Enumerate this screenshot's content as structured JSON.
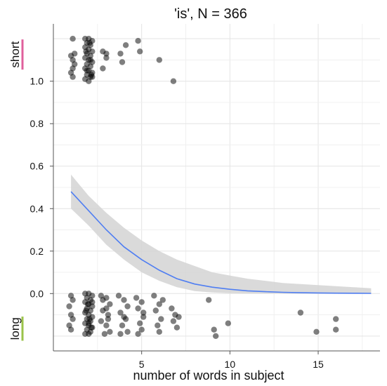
{
  "chart_data": {
    "type": "scatter",
    "title": "'is', N = 366",
    "xlabel": "number of words in subject",
    "ylabel": "",
    "xlim": [
      0,
      18.5
    ],
    "ylim": [
      -0.27,
      1.27
    ],
    "x_ticks": [
      5,
      10,
      15
    ],
    "y_ticks": [
      0.0,
      0.2,
      0.4,
      0.6,
      0.8,
      1.0
    ],
    "y_tick_labels": [
      "0.0",
      "0.2",
      "0.4",
      "0.6",
      "0.8",
      "1.0"
    ],
    "grid": true,
    "category_labels": [
      {
        "text": "short",
        "y": 1.0,
        "color": "#e0609c"
      },
      {
        "text": "long",
        "y": 0.0,
        "color": "#9bc34a"
      }
    ],
    "fit": {
      "x": [
        1,
        2,
        3,
        4,
        5,
        6,
        7,
        8,
        9,
        10,
        11,
        12,
        13,
        14,
        15,
        16,
        17,
        18
      ],
      "y": [
        0.48,
        0.39,
        0.3,
        0.22,
        0.16,
        0.11,
        0.07,
        0.045,
        0.03,
        0.02,
        0.013,
        0.009,
        0.006,
        0.004,
        0.003,
        0.002,
        0.0015,
        0.001
      ],
      "lower": [
        0.4,
        0.32,
        0.23,
        0.16,
        0.1,
        0.06,
        0.03,
        0.012,
        0.005,
        0.002,
        0.001,
        0.0005,
        0.0003,
        0.0002,
        0.0001,
        0.0001,
        0.0,
        0.0
      ],
      "upper": [
        0.56,
        0.46,
        0.38,
        0.31,
        0.25,
        0.2,
        0.16,
        0.13,
        0.1,
        0.085,
        0.07,
        0.06,
        0.05,
        0.045,
        0.04,
        0.035,
        0.03,
        0.025
      ],
      "line_color": "#4f7ef2",
      "band_color": "#d3d3d3"
    },
    "points": [
      {
        "x": 1.1,
        "y": 1.2
      },
      {
        "x": 1.2,
        "y": 1.13
      },
      {
        "x": 1.0,
        "y": 1.12
      },
      {
        "x": 1.1,
        "y": 1.1
      },
      {
        "x": 1.2,
        "y": 1.08
      },
      {
        "x": 1.1,
        "y": 1.06
      },
      {
        "x": 1.0,
        "y": 1.04
      },
      {
        "x": 1.1,
        "y": 1.02
      },
      {
        "x": 1.8,
        "y": 1.2
      },
      {
        "x": 2.0,
        "y": 1.2
      },
      {
        "x": 2.2,
        "y": 1.19
      },
      {
        "x": 1.9,
        "y": 1.18
      },
      {
        "x": 2.1,
        "y": 1.17
      },
      {
        "x": 1.8,
        "y": 1.16
      },
      {
        "x": 2.0,
        "y": 1.15
      },
      {
        "x": 2.2,
        "y": 1.14
      },
      {
        "x": 1.9,
        "y": 1.13
      },
      {
        "x": 2.1,
        "y": 1.12
      },
      {
        "x": 1.8,
        "y": 1.11
      },
      {
        "x": 2.0,
        "y": 1.1
      },
      {
        "x": 2.2,
        "y": 1.09
      },
      {
        "x": 1.9,
        "y": 1.08
      },
      {
        "x": 2.1,
        "y": 1.07
      },
      {
        "x": 1.8,
        "y": 1.06
      },
      {
        "x": 2.0,
        "y": 1.05
      },
      {
        "x": 2.2,
        "y": 1.04
      },
      {
        "x": 1.9,
        "y": 1.03
      },
      {
        "x": 2.1,
        "y": 1.02
      },
      {
        "x": 1.8,
        "y": 1.01
      },
      {
        "x": 2.0,
        "y": 1.0
      },
      {
        "x": 2.2,
        "y": 1.02
      },
      {
        "x": 1.9,
        "y": 1.05
      },
      {
        "x": 2.1,
        "y": 1.1
      },
      {
        "x": 1.85,
        "y": 1.14
      },
      {
        "x": 2.05,
        "y": 1.18
      },
      {
        "x": 2.15,
        "y": 1.03
      },
      {
        "x": 2.8,
        "y": 1.14
      },
      {
        "x": 3.0,
        "y": 1.13
      },
      {
        "x": 3.0,
        "y": 1.11
      },
      {
        "x": 2.8,
        "y": 1.06
      },
      {
        "x": 3.8,
        "y": 1.13
      },
      {
        "x": 4.1,
        "y": 1.17
      },
      {
        "x": 3.9,
        "y": 1.09
      },
      {
        "x": 4.8,
        "y": 1.19
      },
      {
        "x": 4.9,
        "y": 1.14
      },
      {
        "x": 6.0,
        "y": 1.1
      },
      {
        "x": 6.8,
        "y": 1.0
      },
      {
        "x": 1.0,
        "y": -0.01
      },
      {
        "x": 1.1,
        "y": -0.03
      },
      {
        "x": 0.9,
        "y": -0.06
      },
      {
        "x": 1.0,
        "y": -0.1
      },
      {
        "x": 1.1,
        "y": -0.12
      },
      {
        "x": 0.9,
        "y": -0.15
      },
      {
        "x": 1.0,
        "y": -0.17
      },
      {
        "x": 1.8,
        "y": -0.0
      },
      {
        "x": 2.0,
        "y": -0.0
      },
      {
        "x": 2.2,
        "y": -0.01
      },
      {
        "x": 1.9,
        "y": -0.02
      },
      {
        "x": 2.1,
        "y": -0.03
      },
      {
        "x": 1.8,
        "y": -0.04
      },
      {
        "x": 2.0,
        "y": -0.05
      },
      {
        "x": 2.2,
        "y": -0.06
      },
      {
        "x": 1.9,
        "y": -0.07
      },
      {
        "x": 2.1,
        "y": -0.08
      },
      {
        "x": 1.8,
        "y": -0.09
      },
      {
        "x": 2.0,
        "y": -0.1
      },
      {
        "x": 2.2,
        "y": -0.11
      },
      {
        "x": 1.9,
        "y": -0.12
      },
      {
        "x": 2.1,
        "y": -0.13
      },
      {
        "x": 1.8,
        "y": -0.14
      },
      {
        "x": 2.0,
        "y": -0.15
      },
      {
        "x": 2.2,
        "y": -0.16
      },
      {
        "x": 1.9,
        "y": -0.17
      },
      {
        "x": 2.1,
        "y": -0.18
      },
      {
        "x": 1.8,
        "y": -0.19
      },
      {
        "x": 2.0,
        "y": -0.19
      },
      {
        "x": 2.2,
        "y": -0.04
      },
      {
        "x": 1.85,
        "y": -0.08
      },
      {
        "x": 2.05,
        "y": -0.12
      },
      {
        "x": 2.15,
        "y": -0.16
      },
      {
        "x": 1.95,
        "y": -0.05
      },
      {
        "x": 2.0,
        "y": -0.14
      },
      {
        "x": 2.7,
        "y": -0.01
      },
      {
        "x": 3.0,
        "y": -0.02
      },
      {
        "x": 3.2,
        "y": -0.05
      },
      {
        "x": 2.8,
        "y": -0.08
      },
      {
        "x": 3.1,
        "y": -0.1
      },
      {
        "x": 2.7,
        "y": -0.13
      },
      {
        "x": 3.0,
        "y": -0.15
      },
      {
        "x": 3.2,
        "y": -0.18
      },
      {
        "x": 2.9,
        "y": -0.19
      },
      {
        "x": 3.1,
        "y": -0.12
      },
      {
        "x": 2.8,
        "y": -0.03
      },
      {
        "x": 3.0,
        "y": -0.07
      },
      {
        "x": 3.7,
        "y": -0.01
      },
      {
        "x": 4.0,
        "y": -0.03
      },
      {
        "x": 4.2,
        "y": -0.06
      },
      {
        "x": 3.8,
        "y": -0.09
      },
      {
        "x": 4.1,
        "y": -0.12
      },
      {
        "x": 3.9,
        "y": -0.15
      },
      {
        "x": 4.2,
        "y": -0.18
      },
      {
        "x": 3.8,
        "y": -0.19
      },
      {
        "x": 4.0,
        "y": -0.11
      },
      {
        "x": 4.7,
        "y": -0.02
      },
      {
        "x": 5.0,
        "y": -0.04
      },
      {
        "x": 4.8,
        "y": -0.07
      },
      {
        "x": 5.1,
        "y": -0.11
      },
      {
        "x": 4.9,
        "y": -0.14
      },
      {
        "x": 5.0,
        "y": -0.17
      },
      {
        "x": 4.8,
        "y": -0.19
      },
      {
        "x": 5.1,
        "y": -0.09
      },
      {
        "x": 5.7,
        "y": -0.01
      },
      {
        "x": 6.0,
        "y": -0.05
      },
      {
        "x": 5.8,
        "y": -0.08
      },
      {
        "x": 6.1,
        "y": -0.12
      },
      {
        "x": 5.9,
        "y": -0.15
      },
      {
        "x": 6.0,
        "y": -0.18
      },
      {
        "x": 6.2,
        "y": -0.03
      },
      {
        "x": 6.7,
        "y": -0.07
      },
      {
        "x": 6.9,
        "y": -0.1
      },
      {
        "x": 7.1,
        "y": -0.11
      },
      {
        "x": 6.8,
        "y": -0.13
      },
      {
        "x": 7.0,
        "y": -0.16
      },
      {
        "x": 8.8,
        "y": -0.03
      },
      {
        "x": 9.1,
        "y": -0.17
      },
      {
        "x": 9.2,
        "y": -0.2
      },
      {
        "x": 9.9,
        "y": -0.14
      },
      {
        "x": 14.0,
        "y": -0.09
      },
      {
        "x": 14.9,
        "y": -0.18
      },
      {
        "x": 16.0,
        "y": -0.12
      },
      {
        "x": 16.0,
        "y": -0.17
      }
    ],
    "point_color": "#000000",
    "point_opacity": 0.5
  }
}
